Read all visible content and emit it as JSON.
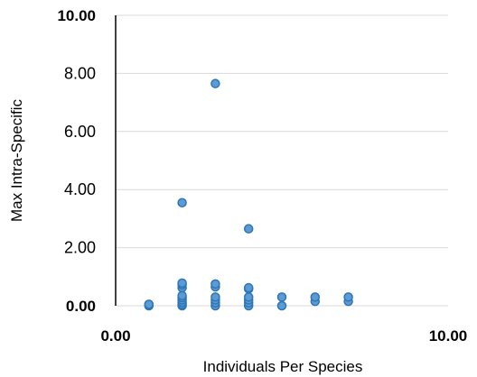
{
  "chart_data": {
    "type": "scatter",
    "xlabel": "Individuals Per Species",
    "ylabel": "Max Intra-Specific",
    "xlim": [
      0,
      10
    ],
    "ylim": [
      0,
      10
    ],
    "x_ticks": [
      "0.00",
      "10.00"
    ],
    "y_ticks": [
      "0.00",
      "2.00",
      "4.00",
      "6.00",
      "8.00",
      "10.00"
    ],
    "grid": true,
    "legend": "none",
    "marker_color": "#5B9BD5",
    "marker_edge": "#2E75B6",
    "points": [
      {
        "x": 1,
        "y": 0.0
      },
      {
        "x": 1,
        "y": 0.02
      },
      {
        "x": 1,
        "y": 0.05
      },
      {
        "x": 2,
        "y": 0.0
      },
      {
        "x": 2,
        "y": 0.05
      },
      {
        "x": 2,
        "y": 0.12
      },
      {
        "x": 2,
        "y": 0.2
      },
      {
        "x": 2,
        "y": 0.28
      },
      {
        "x": 2,
        "y": 0.35
      },
      {
        "x": 2,
        "y": 0.62
      },
      {
        "x": 2,
        "y": 0.72
      },
      {
        "x": 2,
        "y": 0.78
      },
      {
        "x": 2,
        "y": 3.55
      },
      {
        "x": 3,
        "y": 0.0
      },
      {
        "x": 3,
        "y": 0.1
      },
      {
        "x": 3,
        "y": 0.2
      },
      {
        "x": 3,
        "y": 0.3
      },
      {
        "x": 3,
        "y": 0.65
      },
      {
        "x": 3,
        "y": 0.75
      },
      {
        "x": 3,
        "y": 7.65
      },
      {
        "x": 4,
        "y": 0.0
      },
      {
        "x": 4,
        "y": 0.1
      },
      {
        "x": 4,
        "y": 0.2
      },
      {
        "x": 4,
        "y": 0.3
      },
      {
        "x": 4,
        "y": 0.58
      },
      {
        "x": 4,
        "y": 0.62
      },
      {
        "x": 4,
        "y": 2.65
      },
      {
        "x": 5,
        "y": 0.0
      },
      {
        "x": 5,
        "y": 0.3
      },
      {
        "x": 6,
        "y": 0.15
      },
      {
        "x": 6,
        "y": 0.3
      },
      {
        "x": 7,
        "y": 0.15
      },
      {
        "x": 7,
        "y": 0.3
      }
    ]
  }
}
